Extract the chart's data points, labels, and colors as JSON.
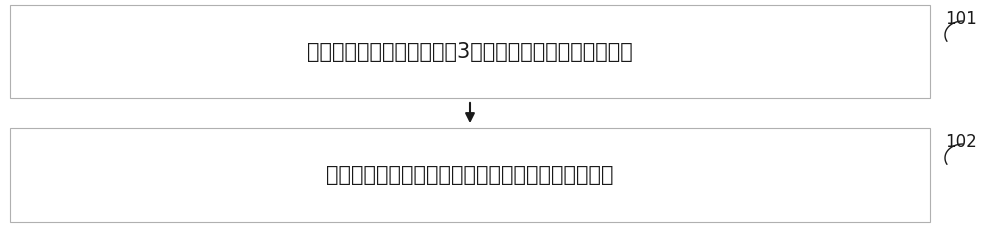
{
  "box1_text": "混合信号由单路模数转换器3转换成数字信号送入微处理器",
  "box2_text": "微处理器对数字信号进行处理，解调出各个被测信号",
  "label1": "101",
  "label2": "102",
  "box_edge_color": "#b0b0b0",
  "box_face_color": "#ffffff",
  "text_color": "#1a1a1a",
  "label_color": "#1a1a1a",
  "arrow_color": "#1a1a1a",
  "background_color": "#ffffff",
  "font_size": 15,
  "label_font_size": 12
}
